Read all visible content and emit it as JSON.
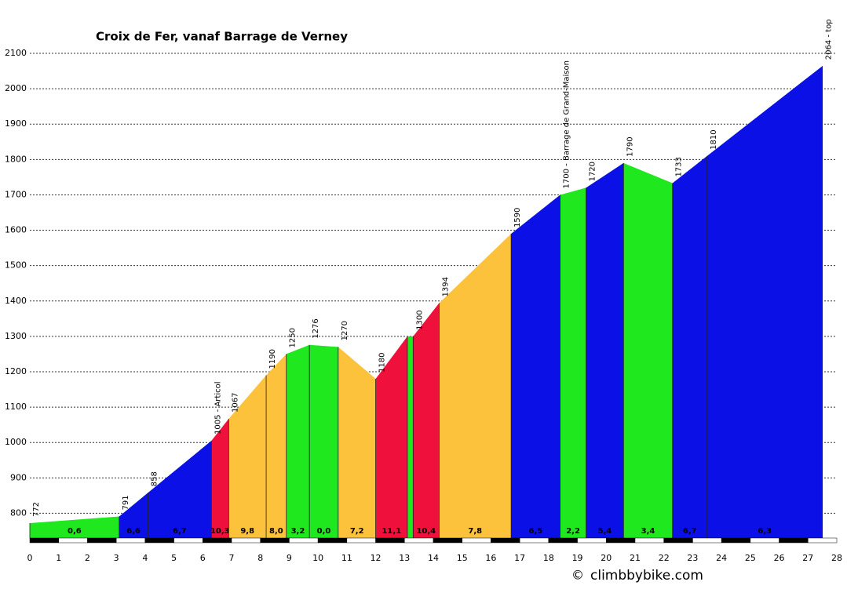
{
  "chart_data": {
    "type": "area",
    "title": "Croix de Fer, vanaf Barrage de Verney",
    "x": [
      0,
      3.1,
      4.1,
      6.3,
      6.9,
      8.2,
      8.9,
      9.7,
      10.7,
      12.0,
      13.1,
      13.3,
      14.2,
      16.7,
      18.4,
      19.3,
      20.6,
      22.3,
      23.5,
      27.5
    ],
    "values": [
      772,
      791,
      858,
      1005,
      1067,
      1190,
      1250,
      1276,
      1270,
      1180,
      1300,
      1300,
      1394,
      1590,
      1700,
      1720,
      1790,
      1733,
      1810,
      2064
    ],
    "value_labels": [
      "772",
      "791",
      "858",
      "1005 - Articol",
      "1067",
      "1190",
      "1250",
      "1276",
      "1270",
      "1180",
      null,
      "1300",
      "1394",
      "1590",
      "1700 - Barrage de Grand-Maison",
      "1720",
      "1790",
      "1733",
      "1810",
      "2064 - top"
    ],
    "segments": [
      {
        "color": "#1fe81f",
        "label": "0,6"
      },
      {
        "color": "#0a10e6",
        "label": "6,6"
      },
      {
        "color": "#0a10e6",
        "label": "6,7"
      },
      {
        "color": "#f0103c",
        "label": "10,3"
      },
      {
        "color": "#fdc23c",
        "label": "9,8"
      },
      {
        "color": "#fdc23c",
        "label": "8,0"
      },
      {
        "color": "#1fe81f",
        "label": "3,2"
      },
      {
        "color": "#1fe81f",
        "label": "0,0"
      },
      {
        "color": "#fdc23c",
        "label": "7,2"
      },
      {
        "color": "#f0103c",
        "label": "11,1"
      },
      {
        "color": "#1fe81f",
        "label": null
      },
      {
        "color": "#f0103c",
        "label": "10,4"
      },
      {
        "color": "#fdc23c",
        "label": "7,8"
      },
      {
        "color": "#0a10e6",
        "label": "6,5"
      },
      {
        "color": "#1fe81f",
        "label": "2,2"
      },
      {
        "color": "#0a10e6",
        "label": "5,4"
      },
      {
        "color": "#1fe81f",
        "label": "3,4"
      },
      {
        "color": "#0a10e6",
        "label": "6,7"
      },
      {
        "color": "#0a10e6",
        "label": "6,3"
      }
    ],
    "xlim": [
      0,
      28
    ],
    "xticks": [
      0,
      1,
      2,
      3,
      4,
      5,
      6,
      7,
      8,
      9,
      10,
      11,
      12,
      13,
      14,
      15,
      16,
      17,
      18,
      19,
      20,
      21,
      22,
      23,
      24,
      25,
      26,
      27,
      28
    ],
    "ylim": [
      730,
      2100
    ],
    "yticks": [
      800,
      900,
      1000,
      1100,
      1200,
      1300,
      1400,
      1500,
      1600,
      1700,
      1800,
      1900,
      2000,
      2100
    ],
    "grid": true,
    "footer": {
      "copyright": "©",
      "site": "climbbybike.com"
    }
  }
}
